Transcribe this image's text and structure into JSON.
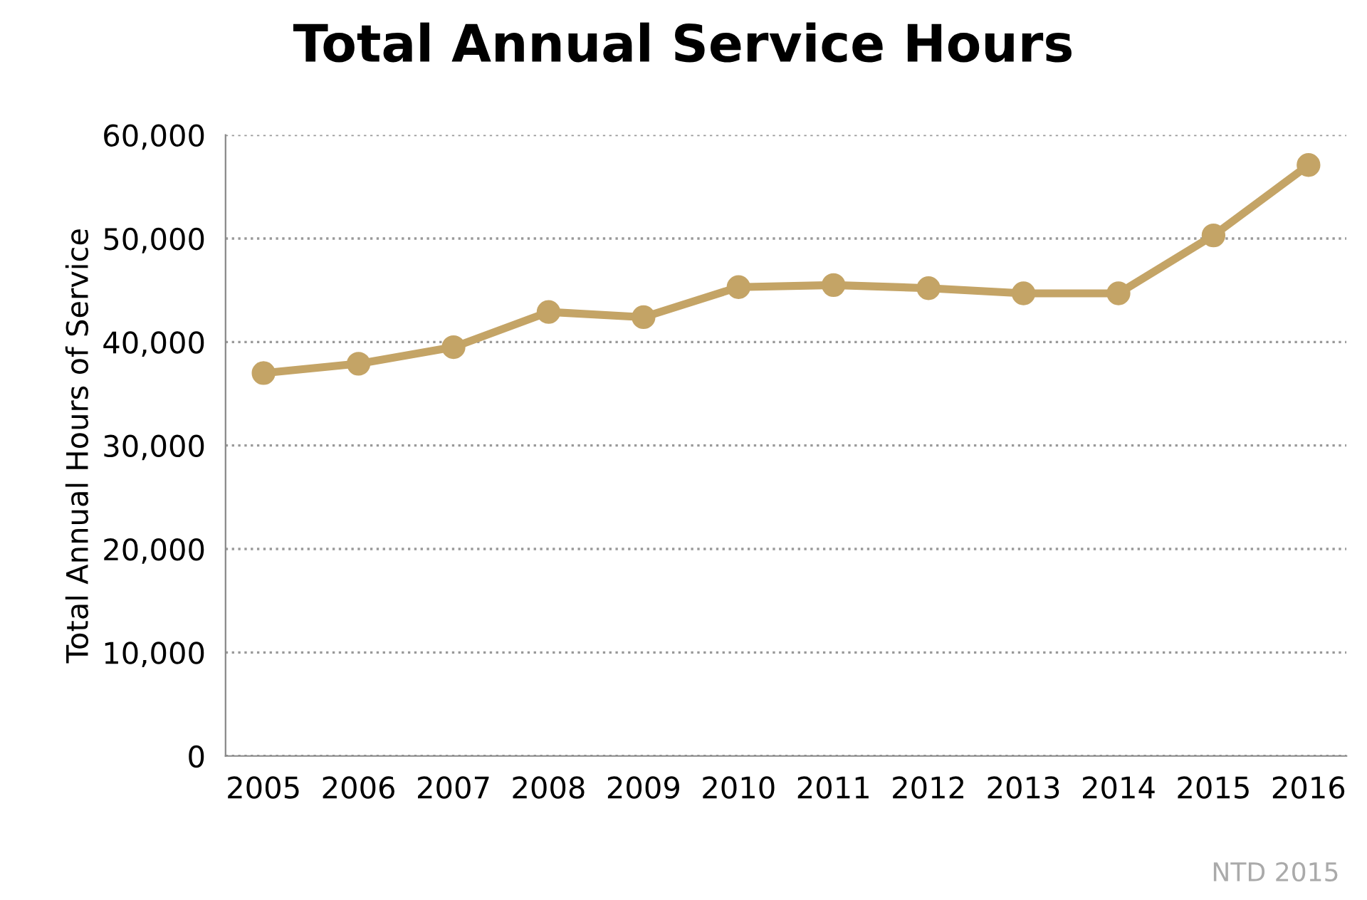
{
  "chart_data": {
    "type": "line",
    "title": "Total Annual Service Hours",
    "ylabel": "Total Annual Hours of Service",
    "categories": [
      "2005",
      "2006",
      "2007",
      "2008",
      "2009",
      "2010",
      "2011",
      "2012",
      "2013",
      "2014",
      "2015",
      "2016"
    ],
    "series": [
      {
        "color": "#c4a466",
        "values": [
          37000,
          37900,
          39500,
          42900,
          42400,
          45300,
          45500,
          45200,
          44700,
          44700,
          50300,
          57100
        ]
      }
    ],
    "ylim": [
      0,
      60000
    ],
    "yticks": [
      0,
      {
        "value": 10000,
        "label": "10,000"
      },
      {
        "value": 20000,
        "label": "20,000"
      },
      {
        "value": 30000,
        "label": "30,000"
      },
      {
        "value": 40000,
        "label": "40,000"
      },
      {
        "value": 50000,
        "label": "50,000"
      },
      {
        "value": 60000,
        "label": "60,000"
      }
    ],
    "grid": "y",
    "marker": "circle",
    "line_style": "solid",
    "legend": false,
    "annotations": [
      "NTD 2015"
    ]
  }
}
